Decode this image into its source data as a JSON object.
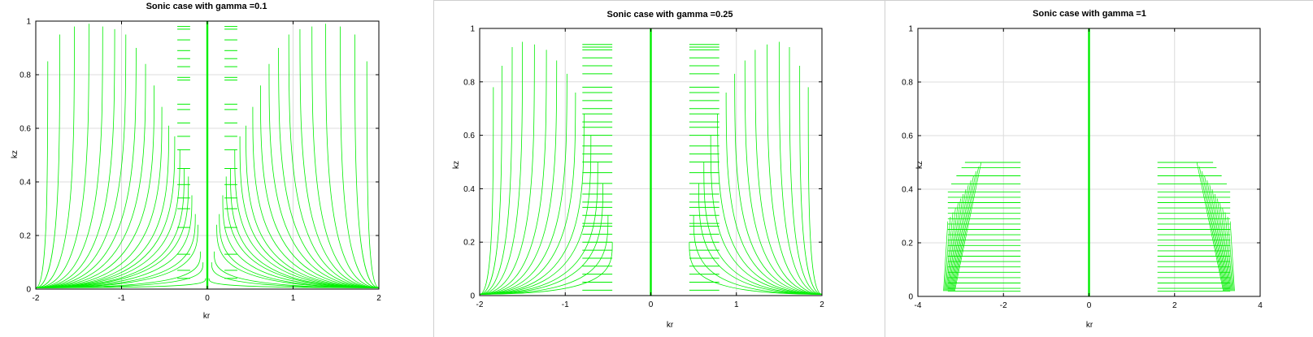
{
  "chart_data": [
    {
      "type": "line",
      "title": "Sonic case with gamma =0.1",
      "xlabel": "kr",
      "ylabel": "kz",
      "xlim": [
        -2,
        2
      ],
      "ylim": [
        0,
        1
      ],
      "xticks": [
        -2,
        -1,
        0,
        1,
        2
      ],
      "yticks": [
        0,
        0.2,
        0.4,
        0.6,
        0.8,
        1
      ],
      "xtick_labels": [
        "-2",
        "-1",
        "0",
        "1",
        "2"
      ],
      "ytick_labels": [
        "0",
        "0.2",
        "0.4",
        "0.6",
        "0.8",
        "1"
      ],
      "grid": true,
      "line_color": "#00ee00",
      "curve_family": {
        "apex_x": [
          0.02,
          0.05,
          0.08,
          0.11,
          0.14,
          0.18,
          0.22,
          0.27,
          0.32,
          0.38,
          0.45,
          0.53,
          0.62,
          0.72,
          0.83,
          0.95,
          1.08,
          1.22,
          1.38,
          1.55,
          1.72,
          1.86
        ],
        "apex_y": [
          0.04,
          0.1,
          0.14,
          0.24,
          0.28,
          0.35,
          0.42,
          0.45,
          0.52,
          0.57,
          0.61,
          0.68,
          0.76,
          0.84,
          0.9,
          0.95,
          0.97,
          0.98,
          0.99,
          0.98,
          0.95,
          0.85
        ],
        "base_x": 2,
        "inner_x": 0.2
      },
      "tick_marks_y": [
        0.04,
        0.07,
        0.13,
        0.23,
        0.3,
        0.34,
        0.39,
        0.45,
        0.52,
        0.57,
        0.62,
        0.67,
        0.69,
        0.78,
        0.79,
        0.83,
        0.86,
        0.89,
        0.93,
        0.97,
        0.98
      ],
      "vertical_line_x": 0
    },
    {
      "type": "line",
      "title": "Sonic case with gamma =0.25",
      "xlabel": "kr",
      "ylabel": "kz",
      "xlim": [
        -2,
        2
      ],
      "ylim": [
        0,
        1
      ],
      "xticks": [
        -2,
        -1,
        0,
        1,
        2
      ],
      "yticks": [
        0,
        0.2,
        0.4,
        0.6,
        0.8,
        1
      ],
      "xtick_labels": [
        "-2",
        "-1",
        "0",
        "1",
        "2"
      ],
      "ytick_labels": [
        "0",
        "0.2",
        "0.4",
        "0.6",
        "0.8",
        "1"
      ],
      "grid": true,
      "line_color": "#00ee00",
      "curve_family": {
        "apex_x": [
          0.45,
          0.5,
          0.56,
          0.62,
          0.7,
          0.78,
          0.88,
          0.98,
          1.1,
          1.22,
          1.36,
          1.5,
          1.62,
          1.74,
          1.84
        ],
        "apex_y": [
          0.2,
          0.3,
          0.42,
          0.5,
          0.6,
          0.68,
          0.76,
          0.83,
          0.88,
          0.92,
          0.94,
          0.95,
          0.93,
          0.86,
          0.78
        ],
        "base_x": 2,
        "inner_x": 0.45
      },
      "tick_marks_y": [
        0.02,
        0.05,
        0.08,
        0.11,
        0.14,
        0.17,
        0.2,
        0.23,
        0.26,
        0.27,
        0.3,
        0.33,
        0.35,
        0.38,
        0.42,
        0.46,
        0.5,
        0.53,
        0.56,
        0.6,
        0.63,
        0.65,
        0.68,
        0.7,
        0.73,
        0.76,
        0.78,
        0.83,
        0.86,
        0.89,
        0.92,
        0.93,
        0.94
      ],
      "vertical_line_x": 0
    },
    {
      "type": "line",
      "title": "Sonic case with gamma =1",
      "xlabel": "kr",
      "ylabel": "kz",
      "xlim": [
        -4,
        4
      ],
      "ylim": [
        0,
        1
      ],
      "xticks": [
        -4,
        -2,
        0,
        2,
        4
      ],
      "yticks": [
        0,
        0.2,
        0.4,
        0.6,
        0.8,
        1
      ],
      "xtick_labels": [
        "-4",
        "-2",
        "0",
        "2",
        "4"
      ],
      "ytick_labels": [
        "0",
        "0.2",
        "0.4",
        "0.6",
        "0.8",
        "1"
      ],
      "grid": true,
      "line_color": "#00ee00",
      "band": {
        "x_inner": 1.6,
        "x_outer": 3.3,
        "y_levels": [
          0.02,
          0.03,
          0.05,
          0.07,
          0.09,
          0.11,
          0.13,
          0.15,
          0.17,
          0.19,
          0.21,
          0.23,
          0.25,
          0.27,
          0.29,
          0.31,
          0.33,
          0.35,
          0.37,
          0.39,
          0.42,
          0.45,
          0.48,
          0.5
        ]
      },
      "vertical_line_x": 0
    }
  ]
}
